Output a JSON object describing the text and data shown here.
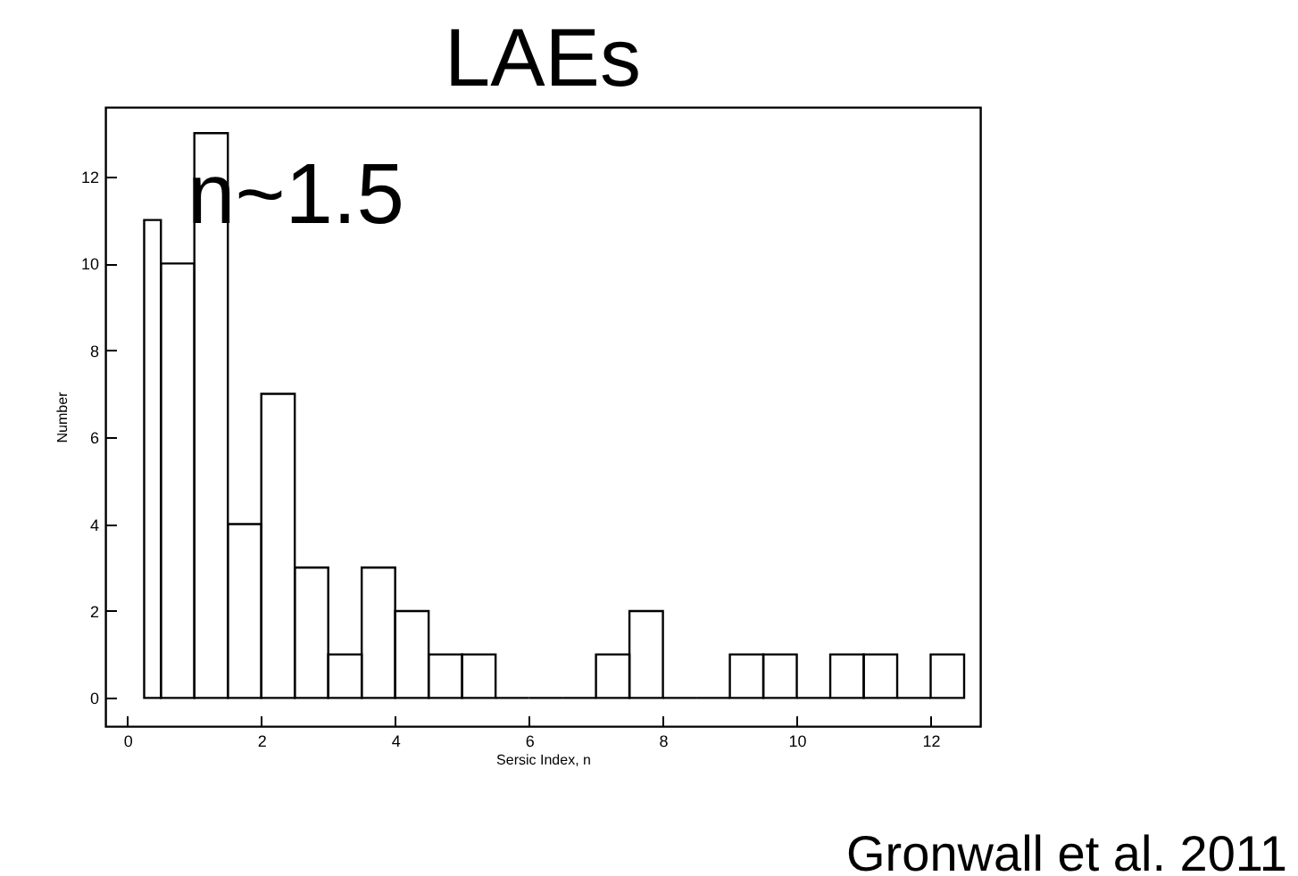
{
  "chart_data": {
    "type": "histogram",
    "title": "LAEs",
    "xlabel": "Sersic Index, n",
    "ylabel": "Number",
    "bins": [
      0.25,
      0.5,
      1,
      1.5,
      2,
      2.5,
      3,
      3.5,
      4,
      4.5,
      5,
      5.5,
      6,
      6.5,
      7,
      7.5,
      8,
      8.5,
      9,
      9.5,
      10,
      10.5,
      11,
      11.5,
      12,
      12.5
    ],
    "values": [
      11,
      10,
      13,
      4,
      7,
      3,
      1,
      3,
      2,
      1,
      1,
      0,
      0,
      0,
      1,
      2,
      0,
      0,
      1,
      1,
      0,
      1,
      1,
      0,
      1
    ],
    "color": "#000000",
    "xlim": [
      -0.33,
      12.74
    ],
    "xticks": [
      0,
      2,
      4,
      6,
      8,
      10,
      12
    ],
    "ylim": [
      -0.65,
      13.6
    ],
    "yticks": [
      0,
      2,
      4,
      6,
      8,
      10,
      12
    ],
    "grid": false,
    "annotations": [
      "n~1.5",
      "Gronwall et al. 2011"
    ]
  }
}
